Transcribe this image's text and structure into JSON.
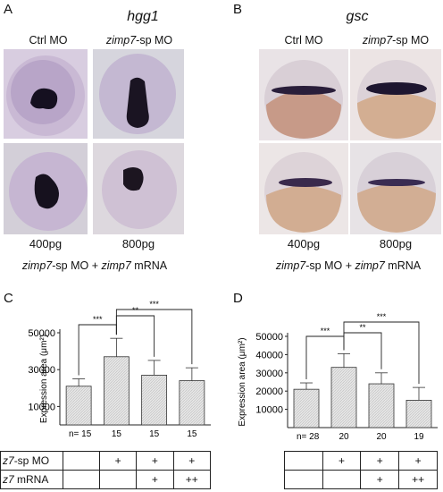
{
  "panels": {
    "A": {
      "letter": "A",
      "gene": "hgg1",
      "col1": "Ctrl MO",
      "col2_italic": "zimp7",
      "col2_rest": "-sp MO",
      "dose1": "400pg",
      "dose2": "800pg",
      "cap_italic1": "zimp7",
      "cap_mid": "-sp MO + ",
      "cap_italic2": "zimp7",
      "cap_end": " mRNA"
    },
    "B": {
      "letter": "B",
      "gene": "gsc",
      "col1": "Ctrl MO",
      "col2_italic": "zimp7",
      "col2_rest": "-sp MO",
      "dose1": "400pg",
      "dose2": "800pg",
      "cap_italic1": "zimp7",
      "cap_mid": "-sp MO + ",
      "cap_italic2": "zimp7",
      "cap_end": " mRNA"
    },
    "C": {
      "letter": "C"
    },
    "D": {
      "letter": "D"
    }
  },
  "chart_data": [
    {
      "type": "bar",
      "panel": "C",
      "ylabel": "Expression area (μm²)",
      "ylim": [
        0,
        50000
      ],
      "yticks": [
        "10000",
        "30000",
        "50000"
      ],
      "ytick_values": [
        10000,
        30000,
        50000
      ],
      "categories": [
        "1",
        "2",
        "3",
        "4"
      ],
      "values": [
        21000,
        37000,
        27000,
        24000
      ],
      "errors": [
        4000,
        10000,
        8000,
        7000
      ],
      "n_prefix": "n= ",
      "n": [
        "15",
        "15",
        "15",
        "15"
      ],
      "significance": [
        {
          "from": 0,
          "to": 1,
          "label": "***"
        },
        {
          "from": 1,
          "to": 2,
          "label": "**"
        },
        {
          "from": 1,
          "to": 3,
          "label": "***"
        }
      ],
      "rows": [
        {
          "label_prefix": "z7",
          "label_suffix": "-sp MO",
          "cells": [
            "",
            "+",
            "+",
            "+"
          ]
        },
        {
          "label_prefix": "z7",
          "label_suffix": " mRNA",
          "cells": [
            "",
            "",
            "+",
            "++"
          ]
        }
      ]
    },
    {
      "type": "bar",
      "panel": "D",
      "ylabel": "Expression area (μm²)",
      "ylim": [
        0,
        50000
      ],
      "yticks": [
        "10000",
        "20000",
        "30000",
        "40000",
        "50000"
      ],
      "ytick_values": [
        10000,
        20000,
        30000,
        40000,
        50000
      ],
      "categories": [
        "1",
        "2",
        "3",
        "4"
      ],
      "values": [
        21000,
        33000,
        24000,
        15000
      ],
      "errors": [
        3500,
        7500,
        6000,
        7000
      ],
      "n_prefix": "n= ",
      "n": [
        "28",
        "20",
        "20",
        "19"
      ],
      "significance": [
        {
          "from": 0,
          "to": 1,
          "label": "***"
        },
        {
          "from": 1,
          "to": 2,
          "label": "**"
        },
        {
          "from": 1,
          "to": 3,
          "label": "***"
        }
      ],
      "rows": [
        {
          "cells": [
            "",
            "+",
            "+",
            "+"
          ]
        },
        {
          "cells": [
            "",
            "",
            "+",
            "++"
          ]
        }
      ]
    }
  ]
}
